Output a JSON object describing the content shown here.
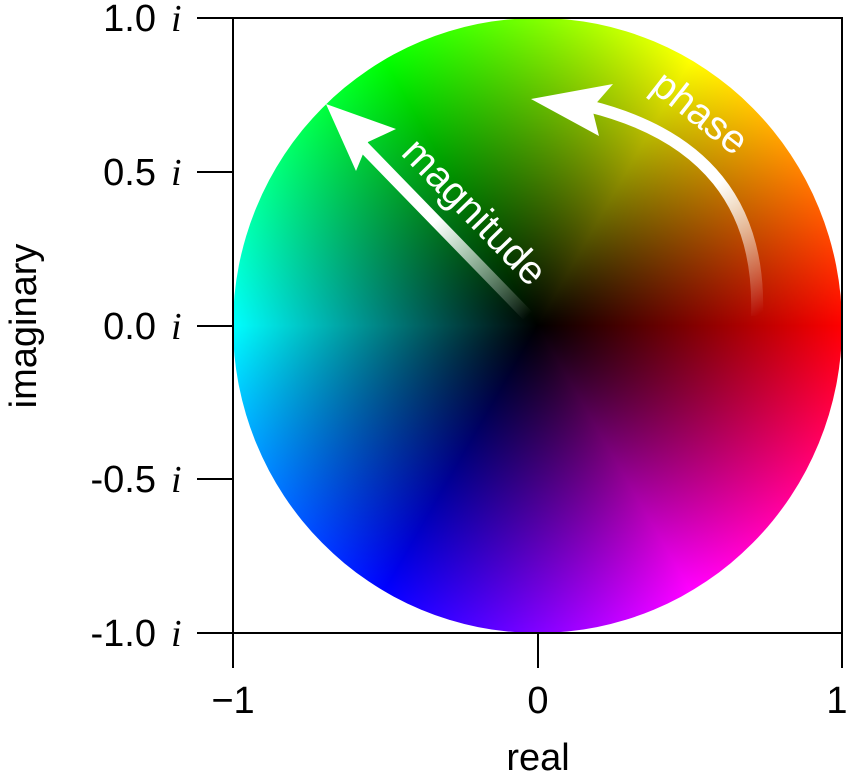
{
  "chart_data": {
    "type": "heatmap",
    "xlabel": "real",
    "ylabel": "imaginary",
    "xlim": [
      -1,
      1
    ],
    "ylim": [
      -1,
      1
    ],
    "x_ticks": [
      "−1",
      "0",
      "1"
    ],
    "y_ticks": [
      {
        "num": "1.0",
        "unit": "i"
      },
      {
        "num": "0.5",
        "unit": "i"
      },
      {
        "num": "0.0",
        "unit": "i"
      },
      {
        "num": "-0.5",
        "unit": "i"
      },
      {
        "num": "-1.0",
        "unit": "i"
      }
    ],
    "annotations": {
      "magnitude": "magnitude",
      "phase": "phase"
    },
    "hue_colors": {
      "0": "#ff0000",
      "60": "#ffff00",
      "120": "#00ff00",
      "180": "#00ffff",
      "240": "#0000ff",
      "300": "#ff00ff"
    },
    "center_color": "#000000"
  }
}
